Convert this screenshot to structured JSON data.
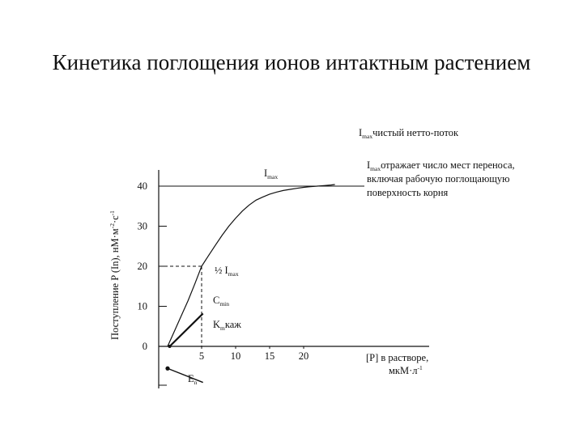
{
  "title": "Кинетика поглощения ионов интактным растением",
  "chart_data": {
    "type": "line",
    "ylabel_parts": [
      "Поступление P (In), нМ·м",
      "-2",
      "·с",
      "-1"
    ],
    "xlabel": "[P] в растворе,",
    "xlabel_unit": "мкМ·л",
    "xlabel_unit_sup": "-1",
    "x_ticks": [
      0,
      5,
      10,
      15,
      20
    ],
    "y_ticks": [
      0,
      10,
      20,
      30,
      40
    ],
    "x_tick_labels": [
      "5",
      "10",
      "15",
      "20"
    ],
    "y_tick_labels": [
      "0",
      "10",
      "20",
      "30",
      "40"
    ],
    "xlim": [
      -1,
      25
    ],
    "ylim": [
      -11,
      45
    ],
    "curve": {
      "x": [
        0,
        1,
        2,
        3,
        4,
        5,
        6,
        7,
        8,
        9,
        10,
        11,
        12,
        13,
        14,
        15,
        16,
        17,
        18,
        19,
        20,
        21,
        22,
        23,
        24,
        24.6
      ],
      "y": [
        0,
        3.8,
        7.6,
        11.4,
        15.6,
        20.0,
        22.6,
        25.2,
        27.7,
        30.0,
        32.0,
        33.8,
        35.3,
        36.5,
        37.3,
        38.0,
        38.5,
        38.9,
        39.2,
        39.45,
        39.7,
        39.85,
        40.0,
        40.15,
        40.28,
        40.4
      ]
    },
    "imax_y": 40,
    "half_imax": {
      "x": 5,
      "y": 20
    },
    "cmin": {
      "x": 0.3,
      "y": 0
    },
    "cmin_line_end": {
      "x": 5.2,
      "y": 8.2
    },
    "en": {
      "x": 0.0,
      "y": -5.5
    },
    "en_line_end": {
      "x": 5.2,
      "y": -9.0
    },
    "annotations": {
      "imax_top": {
        "main": "I",
        "sub": "max",
        "rest": "чистый нетто-поток"
      },
      "imax_line": {
        "main": "I",
        "sub": "max"
      },
      "imax_note": {
        "main": "I",
        "sub": "max",
        "rest": "отражает число мест переноса,",
        "line2": "включая рабочую поглощающую",
        "line3": "поверхность корня"
      },
      "half": {
        "main": "½ I",
        "sub": "max"
      },
      "cmin": {
        "main": "C",
        "sub": "min"
      },
      "km": {
        "main": "K",
        "sub": "m",
        "rest": "каж"
      },
      "en": {
        "main": "E",
        "sub": "n"
      }
    }
  }
}
